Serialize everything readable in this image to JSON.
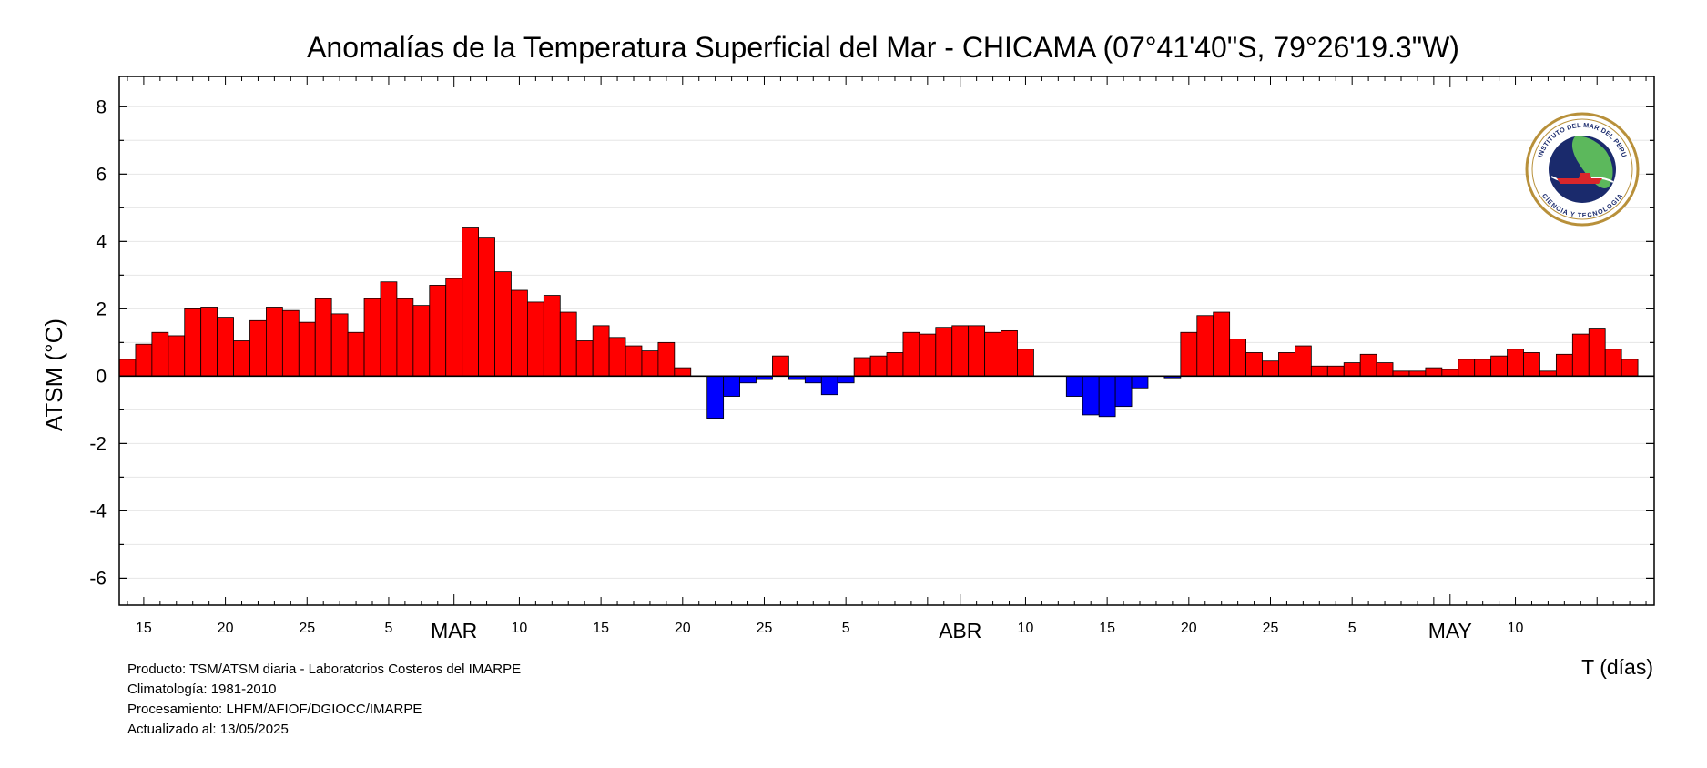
{
  "chart_data": {
    "type": "bar",
    "title": "Anomalías de la Temperatura Superficial del Mar - CHICAMA (07°41'40\"S, 79°26'19.3\"W)",
    "ylabel": "ATSM (°C)",
    "xlabel": "T (días)",
    "ylim": [
      -6.8,
      8.9
    ],
    "yticks": [
      "8",
      "6",
      "4",
      "2",
      "0",
      "-2",
      "-4",
      "-6"
    ],
    "ytick_values": [
      8,
      6,
      4,
      2,
      0,
      -2,
      -4,
      -6
    ],
    "x_start": "2025-02-09",
    "x": [
      "2025-02-09",
      "2025-02-10",
      "2025-02-11",
      "2025-02-12",
      "2025-02-13",
      "2025-02-14",
      "2025-02-15",
      "2025-02-16",
      "2025-02-17",
      "2025-02-18",
      "2025-02-19",
      "2025-02-20",
      "2025-02-21",
      "2025-02-22",
      "2025-02-23",
      "2025-02-24",
      "2025-02-25",
      "2025-02-26",
      "2025-02-27",
      "2025-02-28",
      "2025-03-01",
      "2025-03-02",
      "2025-03-03",
      "2025-03-04",
      "2025-03-05",
      "2025-03-06",
      "2025-03-07",
      "2025-03-08",
      "2025-03-09",
      "2025-03-10",
      "2025-03-11",
      "2025-03-12",
      "2025-03-13",
      "2025-03-14",
      "2025-03-15",
      "2025-03-16",
      "2025-03-17",
      "2025-03-18",
      "2025-03-19",
      "2025-03-20",
      "2025-03-21",
      "2025-03-22",
      "2025-03-23",
      "2025-03-24",
      "2025-03-25",
      "2025-03-26",
      "2025-03-27",
      "2025-03-28",
      "2025-03-29",
      "2025-03-30",
      "2025-03-31",
      "2025-04-01",
      "2025-04-02",
      "2025-04-03",
      "2025-04-04",
      "2025-04-05",
      "2025-04-06",
      "2025-04-07",
      "2025-04-08",
      "2025-04-09",
      "2025-04-10",
      "2025-04-11",
      "2025-04-12",
      "2025-04-13",
      "2025-04-14",
      "2025-04-15",
      "2025-04-16",
      "2025-04-17",
      "2025-04-18",
      "2025-04-19",
      "2025-04-20",
      "2025-04-21",
      "2025-04-22",
      "2025-04-23",
      "2025-04-24",
      "2025-04-25",
      "2025-04-26",
      "2025-04-27",
      "2025-04-28",
      "2025-04-29",
      "2025-04-30",
      "2025-05-01",
      "2025-05-02",
      "2025-05-03",
      "2025-05-04",
      "2025-05-05",
      "2025-05-06",
      "2025-05-07",
      "2025-05-08",
      "2025-05-09",
      "2025-05-10",
      "2025-05-11",
      "2025-05-12",
      "2025-05-13"
    ],
    "values": [
      0.5,
      0.95,
      1.3,
      1.2,
      2.0,
      2.05,
      1.75,
      1.05,
      1.65,
      2.05,
      1.95,
      1.6,
      2.3,
      1.85,
      1.3,
      2.3,
      2.8,
      2.3,
      2.1,
      2.7,
      2.9,
      4.4,
      4.1,
      3.1,
      2.55,
      2.2,
      2.4,
      1.9,
      1.05,
      1.5,
      1.15,
      0.9,
      0.75,
      1.0,
      0.25,
      0.0,
      -1.25,
      -0.6,
      -0.2,
      -0.1,
      0.6,
      -0.1,
      -0.2,
      -0.55,
      -0.2,
      0.55,
      0.6,
      0.7,
      1.3,
      1.25,
      1.45,
      1.5,
      1.5,
      1.3,
      1.35,
      0.8,
      0.0,
      0.0,
      -0.6,
      -1.15,
      -1.2,
      -0.9,
      -0.35,
      0.0,
      -0.05,
      1.3,
      1.8,
      1.9,
      1.1,
      0.7,
      0.45,
      0.7,
      0.9,
      0.3,
      0.3,
      0.4,
      0.65,
      0.4,
      0.15,
      0.15,
      0.25,
      0.2,
      0.5,
      0.5,
      0.6,
      0.8,
      0.7,
      0.15,
      0.65,
      1.25,
      1.4,
      0.8,
      0.5,
      0.0
    ],
    "x_day_ticks": [
      "15",
      "20",
      "25",
      "5",
      "10",
      "15",
      "20",
      "25",
      "5",
      "10",
      "15",
      "20",
      "25",
      "5",
      "10"
    ],
    "x_month_ticks": [
      "MAR",
      "ABR",
      "MAY"
    ],
    "positive_color": "#ff0000",
    "negative_color": "#0000ff",
    "grid": true
  },
  "footer": {
    "line1": "Producto: TSM/ATSM diaria - Laboratorios Costeros del IMARPE",
    "line2": "Climatología: 1981-2010",
    "line3": "Procesamiento: LHFM/AFIOF/DGIOCC/IMARPE",
    "line4": "Actualizado al: 13/05/2025"
  },
  "logo": {
    "text_top": "INSTITUTO DEL MAR DEL PERU",
    "text_bottom": "CIENCIA Y TECNOLOGIA",
    "icon": "imarpe-logo-icon"
  }
}
